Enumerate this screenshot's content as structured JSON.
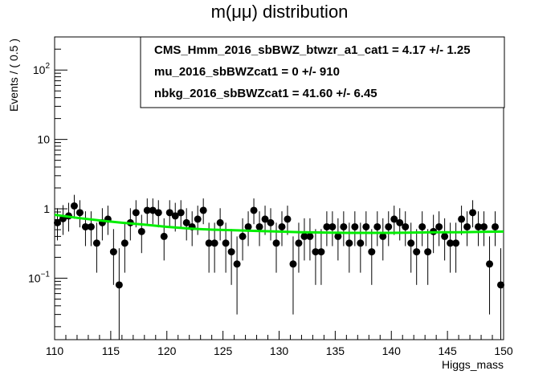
{
  "chart_data": {
    "type": "scatter",
    "title": "m(μμ) distribution",
    "xlabel": "Higgs_mass",
    "ylabel": "Events / ( 0.5 )",
    "xlim": [
      110,
      150
    ],
    "ylim": [
      0.013,
      300
    ],
    "y_scale": "log",
    "x_ticks": [
      "110",
      "115",
      "120",
      "125",
      "130",
      "135",
      "140",
      "145",
      "150"
    ],
    "y_ticks": [
      {
        "value": 0.1,
        "base": "10",
        "exp": "−1"
      },
      {
        "value": 1,
        "base": "1",
        "exp": ""
      },
      {
        "value": 10,
        "base": "10",
        "exp": ""
      },
      {
        "value": 100,
        "base": "10",
        "exp": "2"
      }
    ],
    "grid": false,
    "stats": [
      {
        "name": "CMS_Hmm_2016_sbBWZ_btwzr_a1_cat1",
        "value": "4.17 +/- 1.25"
      },
      {
        "name": "mu_2016_sbBWZcat1",
        "value": "0 +/- 910"
      },
      {
        "name": "nbkg_2016_sbBWZcat1",
        "value": "41.60 +/- 6.45"
      }
    ],
    "series": [
      {
        "x": [
          110.25,
          110.75,
          111.25,
          111.75,
          112.25,
          112.75,
          113.25,
          113.75,
          114.25,
          114.75,
          115.25,
          115.75,
          116.25,
          116.75,
          117.25,
          117.75,
          118.25,
          118.75,
          119.25,
          119.75,
          120.25,
          120.75,
          121.25,
          121.75,
          122.25,
          122.75,
          123.25,
          123.75,
          124.25,
          124.75,
          125.25,
          125.75,
          126.25,
          126.75,
          127.25,
          127.75,
          128.25,
          128.75,
          129.25,
          129.75,
          130.25,
          130.75,
          131.25,
          131.75,
          132.25,
          132.75,
          133.25,
          133.75,
          134.25,
          134.75,
          135.25,
          135.75,
          136.25,
          136.75,
          137.25,
          137.75,
          138.25,
          138.75,
          139.25,
          139.75,
          140.25,
          140.75,
          141.25,
          141.75,
          142.25,
          142.75,
          143.25,
          143.75,
          144.25,
          144.75,
          145.25,
          145.75,
          146.25,
          146.75,
          147.25,
          147.75,
          148.25,
          148.75,
          149.25,
          149.75
        ],
        "y": [
          0.63,
          0.72,
          0.79,
          1.1,
          0.88,
          0.55,
          0.55,
          0.32,
          0.63,
          0.71,
          0.24,
          0.08,
          0.32,
          0.63,
          0.88,
          0.47,
          0.95,
          0.95,
          0.88,
          0.4,
          0.88,
          0.79,
          0.88,
          0.63,
          0.55,
          0.71,
          0.95,
          0.32,
          0.32,
          0.63,
          0.32,
          0.24,
          0.16,
          0.4,
          0.55,
          0.95,
          0.55,
          0.71,
          0.63,
          0.32,
          0.55,
          0.71,
          0.16,
          0.32,
          0.4,
          0.4,
          0.24,
          0.24,
          0.55,
          0.55,
          0.4,
          0.55,
          0.32,
          0.55,
          0.32,
          0.55,
          0.24,
          0.55,
          0.4,
          0.55,
          0.71,
          0.63,
          0.55,
          0.32,
          0.24,
          0.55,
          0.24,
          0.47,
          0.55,
          0.4,
          0.32,
          0.32,
          0.71,
          0.55,
          0.88,
          0.55,
          0.55,
          0.16,
          0.55,
          0.08
        ],
        "y_err_low": [
          0.28,
          0.3,
          0.32,
          0.38,
          0.34,
          0.26,
          0.26,
          0.2,
          0.28,
          0.29,
          0.16,
          0.08,
          0.2,
          0.28,
          0.34,
          0.24,
          0.35,
          0.35,
          0.34,
          0.22,
          0.34,
          0.32,
          0.34,
          0.28,
          0.26,
          0.29,
          0.35,
          0.2,
          0.2,
          0.28,
          0.2,
          0.16,
          0.13,
          0.22,
          0.26,
          0.35,
          0.26,
          0.29,
          0.28,
          0.2,
          0.26,
          0.29,
          0.13,
          0.2,
          0.22,
          0.22,
          0.16,
          0.16,
          0.26,
          0.26,
          0.22,
          0.26,
          0.2,
          0.26,
          0.2,
          0.26,
          0.16,
          0.26,
          0.22,
          0.26,
          0.29,
          0.28,
          0.26,
          0.2,
          0.16,
          0.26,
          0.16,
          0.24,
          0.26,
          0.22,
          0.2,
          0.2,
          0.29,
          0.26,
          0.34,
          0.26,
          0.26,
          0.13,
          0.26,
          0.08
        ],
        "y_err_high": [
          0.39,
          0.41,
          0.43,
          0.49,
          0.45,
          0.37,
          0.37,
          0.31,
          0.39,
          0.4,
          0.27,
          0.19,
          0.31,
          0.39,
          0.45,
          0.35,
          0.46,
          0.46,
          0.45,
          0.33,
          0.45,
          0.43,
          0.45,
          0.39,
          0.37,
          0.4,
          0.46,
          0.31,
          0.31,
          0.39,
          0.31,
          0.27,
          0.24,
          0.33,
          0.37,
          0.46,
          0.37,
          0.4,
          0.39,
          0.31,
          0.37,
          0.4,
          0.24,
          0.31,
          0.33,
          0.33,
          0.27,
          0.27,
          0.37,
          0.37,
          0.33,
          0.37,
          0.31,
          0.37,
          0.31,
          0.37,
          0.27,
          0.37,
          0.33,
          0.37,
          0.4,
          0.39,
          0.37,
          0.31,
          0.27,
          0.37,
          0.27,
          0.35,
          0.37,
          0.33,
          0.31,
          0.31,
          0.4,
          0.37,
          0.45,
          0.37,
          0.37,
          0.24,
          0.37,
          0.19
        ]
      },
      {
        "x": [
          110,
          112,
          114,
          116,
          118,
          120,
          122,
          124,
          126,
          128,
          130,
          132,
          134,
          136,
          138,
          140,
          142,
          144,
          146,
          148,
          150
        ],
        "y": [
          0.82,
          0.74,
          0.68,
          0.63,
          0.59,
          0.55,
          0.52,
          0.5,
          0.49,
          0.48,
          0.47,
          0.46,
          0.455,
          0.45,
          0.45,
          0.45,
          0.455,
          0.46,
          0.46,
          0.465,
          0.47
        ],
        "color": "#00ee00"
      }
    ]
  }
}
